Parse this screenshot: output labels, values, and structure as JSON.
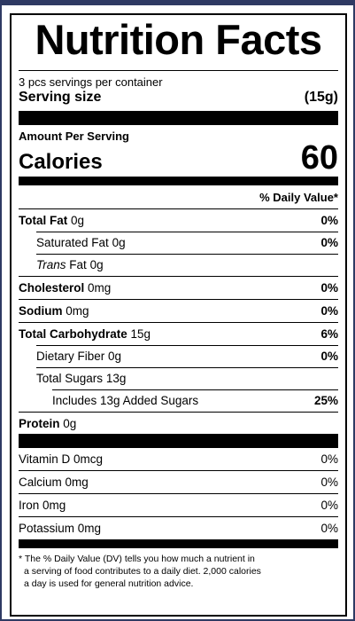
{
  "title": "Nutrition Facts",
  "servings_per_container": "3 pcs servings per container",
  "serving_size": {
    "label": "Serving size",
    "value": "(15g)"
  },
  "amount_per_serving": "Amount Per Serving",
  "calories": {
    "label": "Calories",
    "value": "60"
  },
  "dv_header": "% Daily Value*",
  "nutrients": {
    "total_fat": {
      "label": "Total Fat",
      "amount": "0g",
      "dv": "0%"
    },
    "saturated_fat": {
      "label": "Saturated Fat",
      "amount": "0g",
      "dv": "0%"
    },
    "trans_fat": {
      "label_italic": "Trans",
      "label": "Fat",
      "amount": "0g"
    },
    "cholesterol": {
      "label": "Cholesterol",
      "amount": "0mg",
      "dv": "0%"
    },
    "sodium": {
      "label": "Sodium",
      "amount": "0mg",
      "dv": "0%"
    },
    "total_carb": {
      "label": "Total Carbohydrate",
      "amount": "15g",
      "dv": "6%"
    },
    "dietary_fiber": {
      "label": "Dietary Fiber",
      "amount": "0g",
      "dv": "0%"
    },
    "total_sugars": {
      "label": "Total Sugars",
      "amount": "13g"
    },
    "added_sugars": {
      "label": "Includes 13g Added Sugars",
      "dv": "25%"
    },
    "protein": {
      "label": "Protein",
      "amount": "0g"
    }
  },
  "vitamins": [
    {
      "label": "Vitamin D 0mcg",
      "dv": "0%"
    },
    {
      "label": "Calcium 0mg",
      "dv": "0%"
    },
    {
      "label": "Iron 0mg",
      "dv": "0%"
    },
    {
      "label": "Potassium 0mg",
      "dv": "0%"
    }
  ],
  "footnote": {
    "line1": "* The % Daily Value (DV) tells you how much a nutrient in",
    "line2": "a serving of food contributes to a daily diet. 2,000 calories",
    "line3": "a day is used for general nutrition advice."
  },
  "colors": {
    "frame": "#2f3a63",
    "ink": "#000000"
  }
}
